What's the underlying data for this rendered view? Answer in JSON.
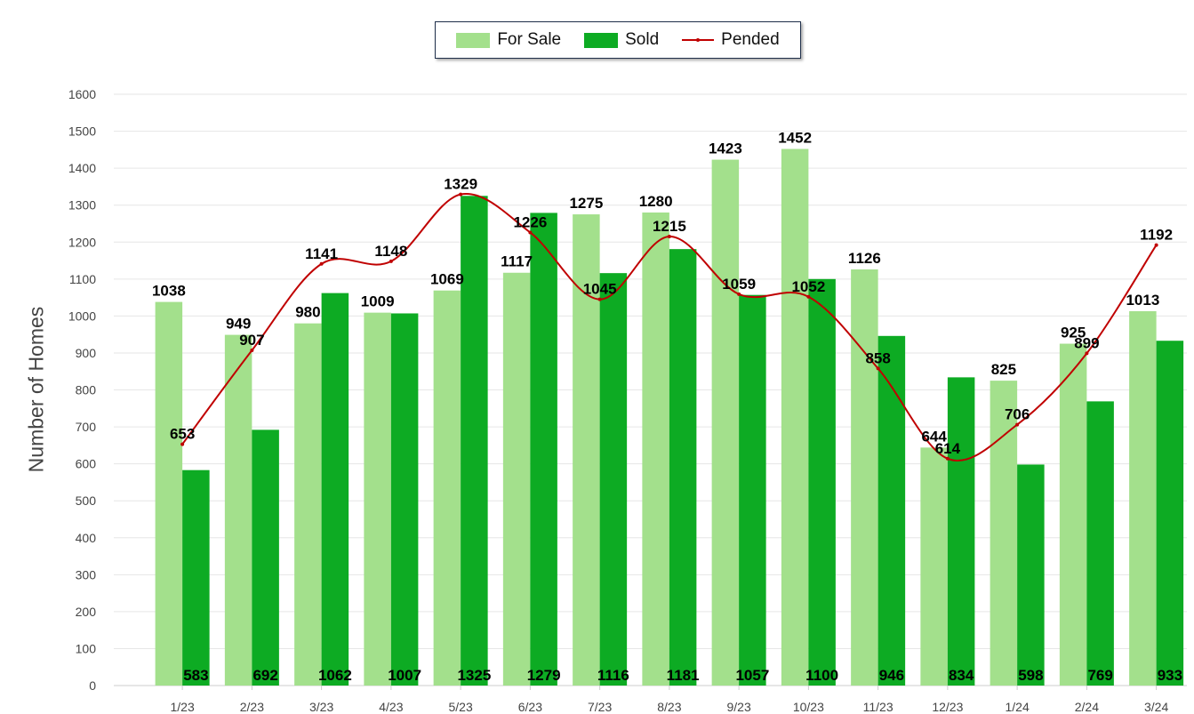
{
  "chart_data": {
    "type": "bar",
    "categories": [
      "1/23",
      "2/23",
      "3/23",
      "4/23",
      "5/23",
      "6/23",
      "7/23",
      "8/23",
      "9/23",
      "10/23",
      "11/23",
      "12/23",
      "1/24",
      "2/24",
      "3/24"
    ],
    "series": [
      {
        "name": "For Sale",
        "kind": "bar",
        "color": "#a3e08c",
        "values": [
          1038,
          949,
          980,
          1009,
          1069,
          1117,
          1275,
          1280,
          1423,
          1452,
          1126,
          644,
          825,
          925,
          1013
        ]
      },
      {
        "name": "Sold",
        "kind": "bar",
        "color": "#0dab23",
        "values": [
          583,
          692,
          1062,
          1007,
          1325,
          1279,
          1116,
          1181,
          1057,
          1100,
          946,
          834,
          598,
          769,
          933
        ]
      },
      {
        "name": "Pended",
        "kind": "line",
        "color": "#c00000",
        "values": [
          653,
          907,
          1141,
          1148,
          1329,
          1226,
          1045,
          1215,
          1059,
          1052,
          858,
          614,
          706,
          899,
          1192
        ]
      }
    ],
    "ylabel": "Number of Homes",
    "xlabel": "",
    "ylim": [
      0,
      1600
    ],
    "yticks": [
      0,
      100,
      200,
      300,
      400,
      500,
      600,
      700,
      800,
      900,
      1000,
      1100,
      1200,
      1300,
      1400,
      1500,
      1600
    ],
    "grid": true,
    "legend_position": "top-center"
  }
}
